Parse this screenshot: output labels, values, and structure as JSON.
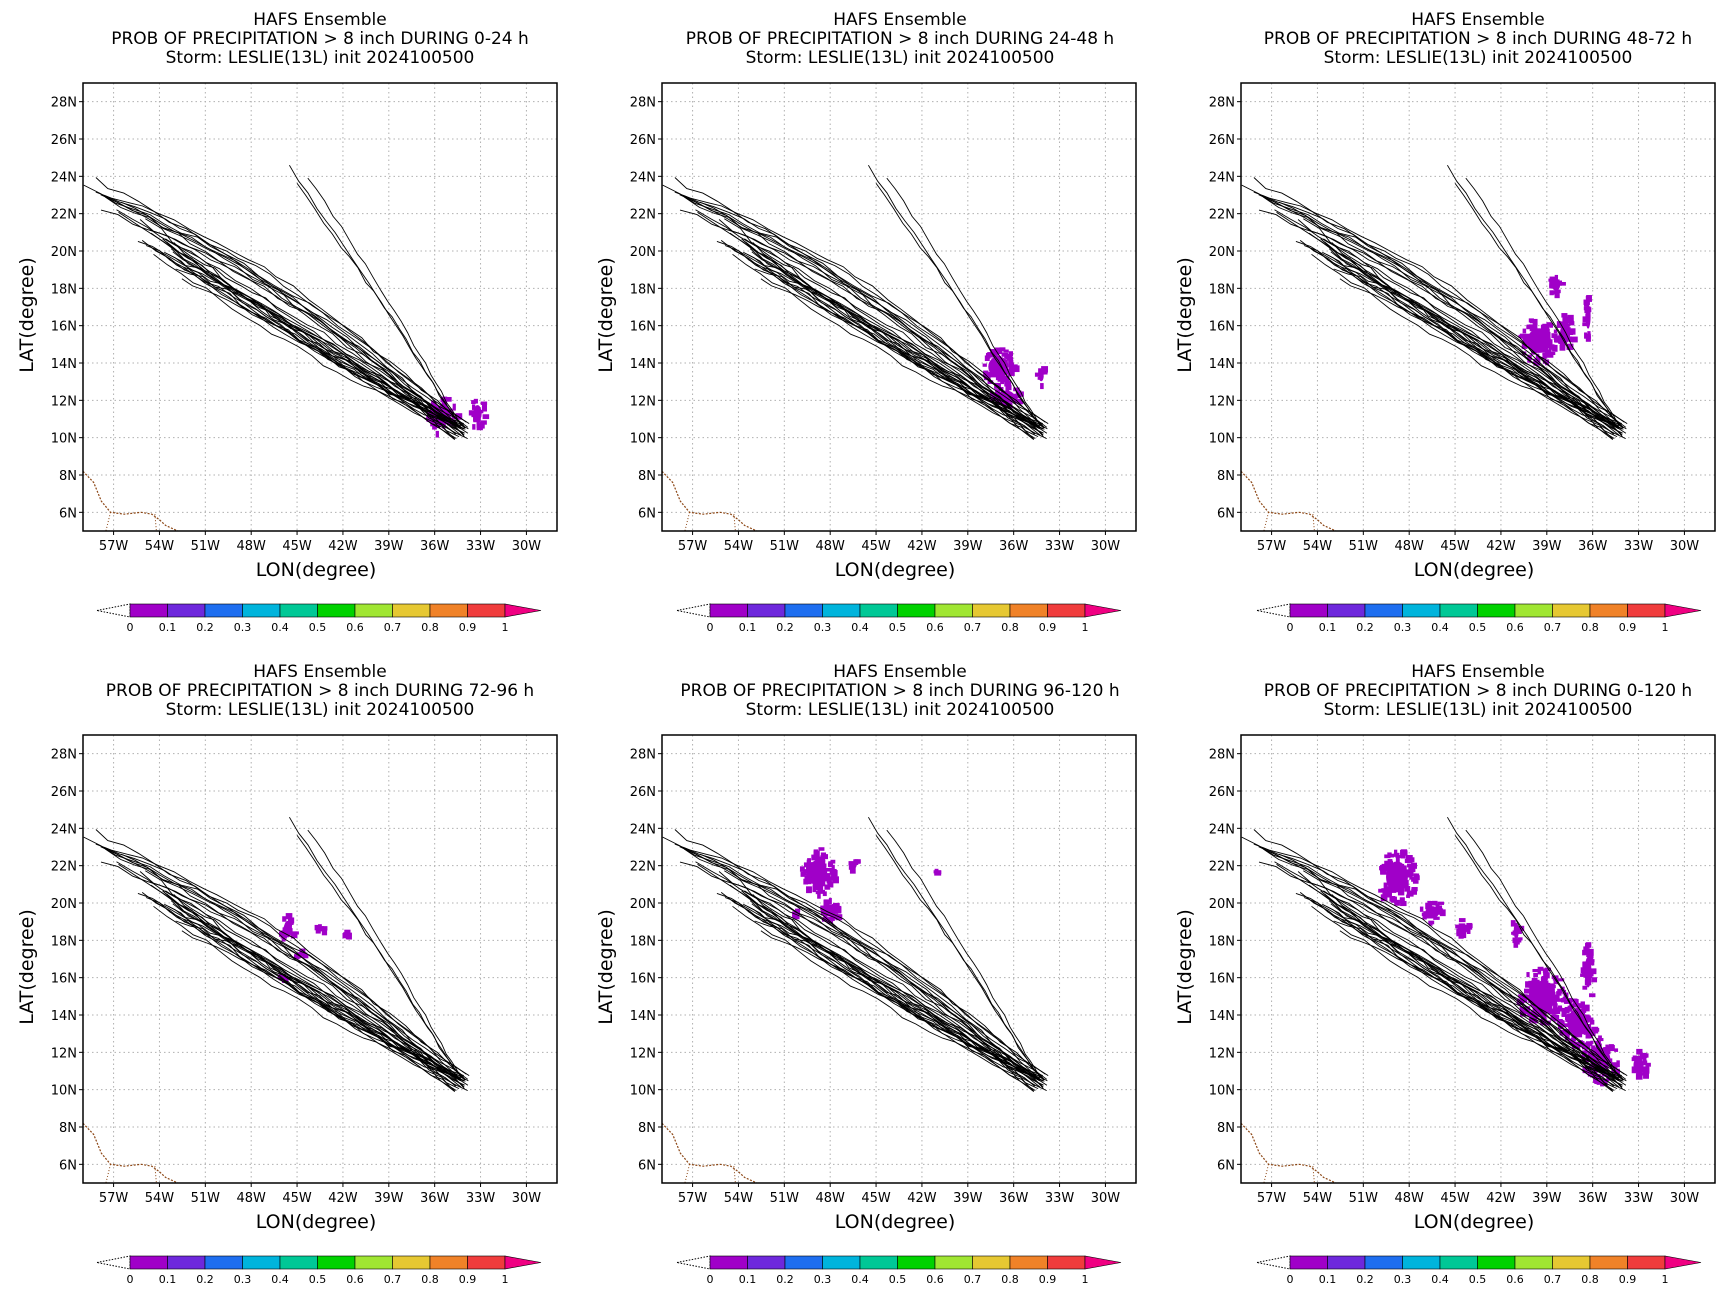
{
  "figure": {
    "colorbar": {
      "labels": [
        "0",
        "0.1",
        "0.2",
        "0.3",
        "0.4",
        "0.5",
        "0.6",
        "0.7",
        "0.8",
        "0.9",
        "1"
      ],
      "colors": [
        "#a000c8",
        "#6e28dc",
        "#1e6ef0",
        "#00b4dc",
        "#00c896",
        "#00d200",
        "#a0e632",
        "#e6c832",
        "#f08228",
        "#f03c3c",
        "#f00082"
      ]
    },
    "map": {
      "coast_color": "#8b4513",
      "track_color": "#000000",
      "prob_color": "#a000c8"
    }
  },
  "chart_data": [
    {
      "type": "map",
      "title": "HAFS Ensemble",
      "subtitle": "PROB OF PRECIPITATION > 8 inch DURING  0-24 h",
      "storm": "Storm: LESLIE(13L) init 2024100500",
      "xlabel": "LON(degree)",
      "ylabel": "LAT(degree)",
      "xlim": [
        -59,
        -28
      ],
      "ylim": [
        5,
        29
      ],
      "xticks": [
        "57W",
        "54W",
        "51W",
        "48W",
        "45W",
        "42W",
        "39W",
        "36W",
        "33W",
        "30W"
      ],
      "yticks": [
        "28N",
        "26N",
        "24N",
        "22N",
        "20N",
        "18N",
        "16N",
        "14N",
        "12N",
        "10N",
        "8N",
        "6N"
      ],
      "grid": true,
      "prob_regions": [
        {
          "lon": -35.5,
          "lat": 11.2,
          "rlon": 1.0,
          "rlat": 1.0,
          "value": 0.1
        },
        {
          "lon": -33.2,
          "lat": 11.3,
          "rlon": 0.5,
          "rlat": 0.8,
          "value": 0.1
        }
      ]
    },
    {
      "type": "map",
      "title": "HAFS Ensemble",
      "subtitle": "PROB OF PRECIPITATION > 8 inch DURING 24-48 h",
      "storm": "Storm: LESLIE(13L) init 2024100500",
      "xlabel": "LON(degree)",
      "ylabel": "LAT(degree)",
      "xlim": [
        -59,
        -28
      ],
      "ylim": [
        5,
        29
      ],
      "xticks": [
        "57W",
        "54W",
        "51W",
        "48W",
        "45W",
        "42W",
        "39W",
        "36W",
        "33W",
        "30W"
      ],
      "yticks": [
        "28N",
        "26N",
        "24N",
        "22N",
        "20N",
        "18N",
        "16N",
        "14N",
        "12N",
        "10N",
        "8N",
        "6N"
      ],
      "grid": true,
      "prob_regions": [
        {
          "lon": -37.0,
          "lat": 13.8,
          "rlon": 1.2,
          "rlat": 1.0,
          "value": 0.1
        },
        {
          "lon": -36.5,
          "lat": 12.2,
          "rlon": 1.0,
          "rlat": 0.6,
          "value": 0.1
        },
        {
          "lon": -34.2,
          "lat": 13.3,
          "rlon": 0.3,
          "rlat": 0.5,
          "value": 0.1
        }
      ]
    },
    {
      "type": "map",
      "title": "HAFS Ensemble",
      "subtitle": "PROB OF PRECIPITATION > 8 inch DURING 48-72 h",
      "storm": "Storm: LESLIE(13L) init 2024100500",
      "xlabel": "LON(degree)",
      "ylabel": "LAT(degree)",
      "xlim": [
        -59,
        -28
      ],
      "ylim": [
        5,
        29
      ],
      "xticks": [
        "57W",
        "54W",
        "51W",
        "48W",
        "45W",
        "42W",
        "39W",
        "36W",
        "33W",
        "30W"
      ],
      "yticks": [
        "28N",
        "26N",
        "24N",
        "22N",
        "20N",
        "18N",
        "16N",
        "14N",
        "12N",
        "10N",
        "8N",
        "6N"
      ],
      "grid": true,
      "prob_regions": [
        {
          "lon": -39.5,
          "lat": 15.2,
          "rlon": 1.4,
          "rlat": 1.2,
          "value": 0.1
        },
        {
          "lon": -37.8,
          "lat": 15.6,
          "rlon": 0.6,
          "rlat": 1.0,
          "value": 0.1
        },
        {
          "lon": -36.3,
          "lat": 16.5,
          "rlon": 0.3,
          "rlat": 1.2,
          "value": 0.1
        },
        {
          "lon": -38.4,
          "lat": 18.2,
          "rlon": 0.5,
          "rlat": 0.6,
          "value": 0.1
        }
      ]
    },
    {
      "type": "map",
      "title": "HAFS Ensemble",
      "subtitle": "PROB OF PRECIPITATION > 8 inch DURING 72-96 h",
      "storm": "Storm: LESLIE(13L) init 2024100500",
      "xlabel": "LON(degree)",
      "ylabel": "LAT(degree)",
      "xlim": [
        -59,
        -28
      ],
      "ylim": [
        5,
        29
      ],
      "xticks": [
        "57W",
        "54W",
        "51W",
        "48W",
        "45W",
        "42W",
        "39W",
        "36W",
        "33W",
        "30W"
      ],
      "yticks": [
        "28N",
        "26N",
        "24N",
        "22N",
        "20N",
        "18N",
        "16N",
        "14N",
        "12N",
        "10N",
        "8N",
        "6N"
      ],
      "grid": true,
      "prob_regions": [
        {
          "lon": -45.6,
          "lat": 18.6,
          "rlon": 0.5,
          "rlat": 0.8,
          "value": 0.1
        },
        {
          "lon": -43.5,
          "lat": 18.6,
          "rlon": 0.3,
          "rlat": 0.2,
          "value": 0.1
        },
        {
          "lon": -41.8,
          "lat": 18.3,
          "rlon": 0.2,
          "rlat": 0.2,
          "value": 0.1
        },
        {
          "lon": -44.8,
          "lat": 17.2,
          "rlon": 0.3,
          "rlat": 0.3,
          "value": 0.1
        },
        {
          "lon": -46.0,
          "lat": 16.0,
          "rlon": 0.2,
          "rlat": 0.2,
          "value": 0.1
        }
      ]
    },
    {
      "type": "map",
      "title": "HAFS Ensemble",
      "subtitle": "PROB OF PRECIPITATION > 8 inch DURING 96-120 h",
      "storm": "Storm: LESLIE(13L) init 2024100500",
      "xlabel": "LON(degree)",
      "ylabel": "LAT(degree)",
      "xlim": [
        -59,
        -28
      ],
      "ylim": [
        5,
        29
      ],
      "xticks": [
        "57W",
        "54W",
        "51W",
        "48W",
        "45W",
        "42W",
        "39W",
        "36W",
        "33W",
        "30W"
      ],
      "yticks": [
        "28N",
        "26N",
        "24N",
        "22N",
        "20N",
        "18N",
        "16N",
        "14N",
        "12N",
        "10N",
        "8N",
        "6N"
      ],
      "grid": true,
      "prob_regions": [
        {
          "lon": -48.8,
          "lat": 21.6,
          "rlon": 1.1,
          "rlat": 1.3,
          "value": 0.1
        },
        {
          "lon": -48.0,
          "lat": 19.6,
          "rlon": 0.7,
          "rlat": 0.6,
          "value": 0.1
        },
        {
          "lon": -46.5,
          "lat": 22.0,
          "rlon": 0.4,
          "rlat": 0.3,
          "value": 0.1
        },
        {
          "lon": -50.2,
          "lat": 19.4,
          "rlon": 0.2,
          "rlat": 0.3,
          "value": 0.1
        },
        {
          "lon": -41.0,
          "lat": 21.6,
          "rlon": 0.15,
          "rlat": 0.15,
          "value": 0.1
        }
      ]
    },
    {
      "type": "map",
      "title": "HAFS Ensemble",
      "subtitle": "PROB OF PRECIPITATION > 8 inch DURING 0-120 h",
      "storm": "Storm: LESLIE(13L) init 2024100500",
      "xlabel": "LON(degree)",
      "ylabel": "LAT(degree)",
      "xlim": [
        -59,
        -28
      ],
      "ylim": [
        5,
        29
      ],
      "xticks": [
        "57W",
        "54W",
        "51W",
        "48W",
        "45W",
        "42W",
        "39W",
        "36W",
        "33W",
        "30W"
      ],
      "yticks": [
        "28N",
        "26N",
        "24N",
        "22N",
        "20N",
        "18N",
        "16N",
        "14N",
        "12N",
        "10N",
        "8N",
        "6N"
      ],
      "grid": true,
      "prob_regions": [
        {
          "lon": -48.8,
          "lat": 21.4,
          "rlon": 1.3,
          "rlat": 1.5,
          "value": 0.1
        },
        {
          "lon": -46.5,
          "lat": 19.5,
          "rlon": 0.8,
          "rlat": 0.6,
          "value": 0.1
        },
        {
          "lon": -44.5,
          "lat": 18.6,
          "rlon": 0.6,
          "rlat": 0.5,
          "value": 0.1
        },
        {
          "lon": -41.0,
          "lat": 18.5,
          "rlon": 0.3,
          "rlat": 0.8,
          "value": 0.1
        },
        {
          "lon": -39.3,
          "lat": 15.0,
          "rlon": 1.6,
          "rlat": 1.5,
          "value": 0.1
        },
        {
          "lon": -37.0,
          "lat": 13.6,
          "rlon": 1.2,
          "rlat": 1.3,
          "value": 0.1
        },
        {
          "lon": -36.3,
          "lat": 16.3,
          "rlon": 0.4,
          "rlat": 1.5,
          "value": 0.1
        },
        {
          "lon": -35.5,
          "lat": 11.6,
          "rlon": 1.2,
          "rlat": 1.2,
          "value": 0.1
        },
        {
          "lon": -33.0,
          "lat": 11.3,
          "rlon": 0.6,
          "rlat": 0.8,
          "value": 0.1
        }
      ]
    }
  ]
}
